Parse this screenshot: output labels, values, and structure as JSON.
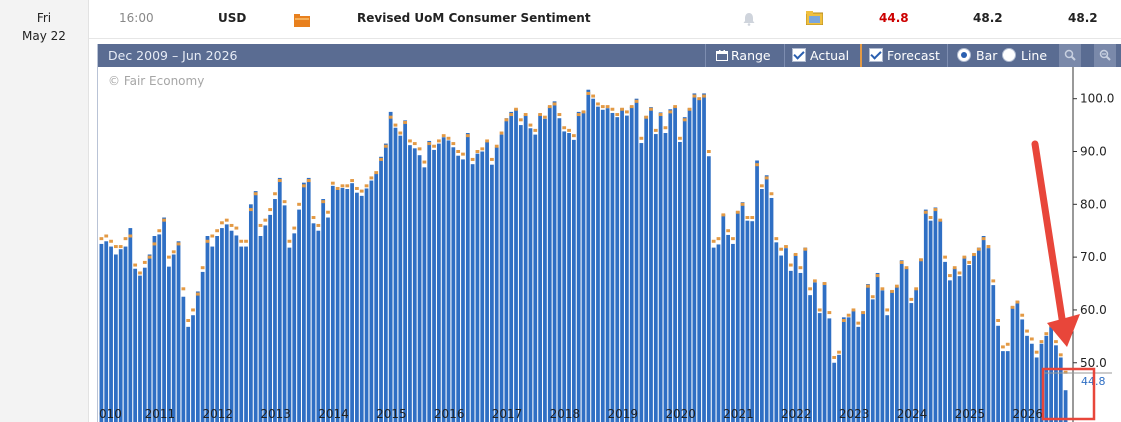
{
  "row": {
    "day": "Fri",
    "date": "May 22",
    "time": "16:00",
    "currency": "USD",
    "impact_icon": "folder-impact-icon",
    "event": "Revised UoM Consumer Sentiment",
    "alert_icon": "bell-icon",
    "detail_icon": "detail-folder-icon",
    "actual": "44.8",
    "forecast": "48.2",
    "previous": "48.2",
    "actual_color": "#cc0000"
  },
  "chart": {
    "range_label": "Dec 2009 – Jun 2026",
    "range_button": "Range",
    "actual_label": "Actual",
    "forecast_label": "Forecast",
    "bar_label": "Bar",
    "line_label": "Line",
    "zoom_in_icon": "zoom-in-icon",
    "zoom_out_icon": "zoom-out-icon",
    "watermark": "© Fair Economy",
    "last_value_label": "44.8",
    "annotation": "red-arrow-and-highlight-box",
    "colors": {
      "actual": "#2f6fc4",
      "forecast": "#e39a45",
      "toolbar": "#5a6c92",
      "annotation": "#e8463a"
    }
  },
  "chart_data": {
    "type": "bar",
    "title": "",
    "xlabel": "",
    "ylabel": "",
    "ylim": [
      42,
      106
    ],
    "yticks": [
      "50.0",
      "60.0",
      "70.0",
      "80.0",
      "90.0",
      "100.0"
    ],
    "year_labels": [
      "010",
      "2011",
      "2012",
      "2013",
      "2014",
      "2015",
      "2016",
      "2017",
      "2018",
      "2019",
      "2020",
      "2021",
      "2022",
      "2023",
      "2024",
      "2025",
      "2026"
    ],
    "start": "2009-12",
    "series": [
      {
        "name": "Actual",
        "values": [
          72.5,
          73.0,
          72.0,
          70.5,
          71.5,
          72.0,
          75.5,
          67.8,
          66.5,
          68.0,
          70.5,
          74.0,
          74.3,
          77.5,
          68.2,
          70.5,
          73.0,
          62.5,
          56.8,
          59.0,
          63.5,
          67.2,
          74.0,
          72.0,
          74.0,
          75.5,
          76.2,
          75.0,
          74.1,
          72.0,
          72.0,
          80.0,
          82.5,
          74.0,
          76.0,
          78.0,
          81.0,
          85.0,
          79.8,
          71.8,
          74.5,
          79.0,
          84.1,
          85.0,
          76.4,
          75.0,
          81.0,
          77.5,
          83.5,
          82.8,
          83.1,
          82.9,
          84.0,
          82.2,
          81.6,
          83.0,
          84.5,
          85.8,
          89.0,
          91.5,
          97.5,
          94.5,
          93.0,
          95.9,
          91.2,
          90.6,
          89.3,
          87.0,
          92.0,
          90.3,
          91.5,
          92.7,
          92.1,
          90.8,
          89.2,
          88.5,
          93.5,
          87.6,
          89.6,
          90.0,
          91.8,
          87.5,
          90.8,
          93.2,
          96.3,
          97.5,
          98.0,
          95.0,
          96.9,
          94.4,
          93.2,
          97.0,
          96.2,
          98.5,
          99.5,
          96.3,
          93.8,
          93.5,
          92.2,
          97.5,
          97.6,
          101.7,
          100.0,
          98.5,
          97.9,
          98.2,
          97.3,
          96.5,
          98.2,
          96.8,
          98.5,
          100.0,
          91.6,
          96.7,
          98.4,
          93.3,
          97.4,
          93.5,
          98.0,
          98.4,
          91.8,
          96.5,
          98.2,
          101.0,
          99.8,
          101.0,
          89.1,
          71.8,
          72.4,
          78.1,
          74.2,
          72.5,
          78.7,
          80.4,
          76.9,
          76.8,
          88.3,
          82.9,
          85.5,
          81.2,
          72.8,
          70.3,
          71.7,
          67.4,
          70.6,
          67.0,
          71.8,
          62.8,
          65.2,
          59.4,
          65.2,
          58.4,
          50.0,
          51.5,
          58.6,
          58.6,
          59.9,
          56.8,
          59.7,
          64.9,
          62.0,
          67.0,
          63.7,
          59.0,
          63.7,
          64.4,
          69.4,
          67.9,
          61.3,
          63.8,
          69.7,
          79.0,
          76.9,
          79.4,
          76.9,
          69.1,
          65.6,
          67.9,
          66.4,
          70.1,
          68.5,
          70.5,
          71.8,
          74.0,
          71.7,
          64.7,
          57.0,
          52.2,
          52.2,
          60.7,
          61.7,
          58.2,
          55.1,
          53.6,
          51.0,
          53.6,
          55.1,
          57.0,
          53.3,
          51.0,
          44.8
        ]
      },
      {
        "name": "Forecast",
        "values": [
          73.5,
          74.0,
          73.0,
          72.0,
          72.0,
          73.5,
          74.0,
          68.5,
          67.0,
          69.0,
          70.0,
          72.5,
          75.0,
          77.0,
          70.0,
          71.0,
          72.5,
          64.0,
          58.0,
          60.0,
          63.0,
          68.0,
          73.0,
          74.0,
          75.0,
          76.5,
          77.0,
          76.0,
          75.5,
          73.0,
          73.0,
          79.0,
          82.0,
          76.0,
          77.0,
          79.0,
          82.0,
          84.5,
          80.5,
          73.0,
          75.5,
          80.0,
          83.5,
          84.5,
          77.5,
          76.0,
          80.5,
          78.5,
          84.0,
          83.0,
          83.5,
          83.5,
          84.5,
          83.0,
          82.5,
          83.5,
          85.0,
          86.0,
          88.5,
          91.0,
          96.5,
          95.0,
          93.5,
          95.5,
          92.0,
          91.5,
          90.5,
          88.0,
          91.5,
          91.0,
          92.0,
          93.0,
          92.5,
          91.5,
          90.0,
          89.5,
          93.0,
          88.5,
          90.0,
          90.5,
          92.0,
          88.5,
          91.0,
          93.5,
          96.0,
          97.0,
          98.0,
          96.0,
          97.0,
          95.0,
          94.0,
          97.0,
          96.5,
          98.5,
          99.0,
          97.0,
          94.5,
          94.0,
          93.0,
          97.0,
          97.5,
          101.0,
          100.5,
          99.0,
          98.5,
          98.5,
          98.0,
          97.0,
          98.0,
          97.5,
          98.5,
          99.5,
          92.5,
          96.5,
          98.0,
          94.0,
          97.0,
          94.5,
          97.5,
          98.5,
          92.5,
          96.0,
          98.0,
          100.5,
          100.0,
          100.5,
          90.0,
          73.0,
          73.5,
          78.0,
          75.0,
          73.5,
          78.5,
          80.0,
          77.5,
          77.5,
          87.5,
          83.5,
          85.0,
          82.0,
          73.5,
          71.5,
          72.0,
          68.5,
          70.5,
          68.0,
          71.5,
          64.0,
          65.5,
          60.0,
          65.0,
          59.5,
          51.0,
          52.0,
          58.0,
          59.0,
          60.0,
          57.5,
          59.5,
          64.5,
          62.5,
          66.5,
          64.0,
          60.0,
          63.5,
          64.5,
          69.0,
          68.0,
          62.0,
          64.0,
          69.5,
          78.5,
          77.5,
          79.0,
          77.0,
          70.0,
          66.5,
          68.0,
          67.0,
          70.0,
          69.0,
          70.5,
          71.5,
          73.5,
          72.0,
          65.5,
          58.0,
          53.0,
          53.5,
          60.5,
          61.5,
          59.0,
          56.0,
          54.5,
          52.0,
          54.0,
          55.5,
          57.0,
          54.0,
          51.5,
          48.2
        ]
      }
    ]
  }
}
